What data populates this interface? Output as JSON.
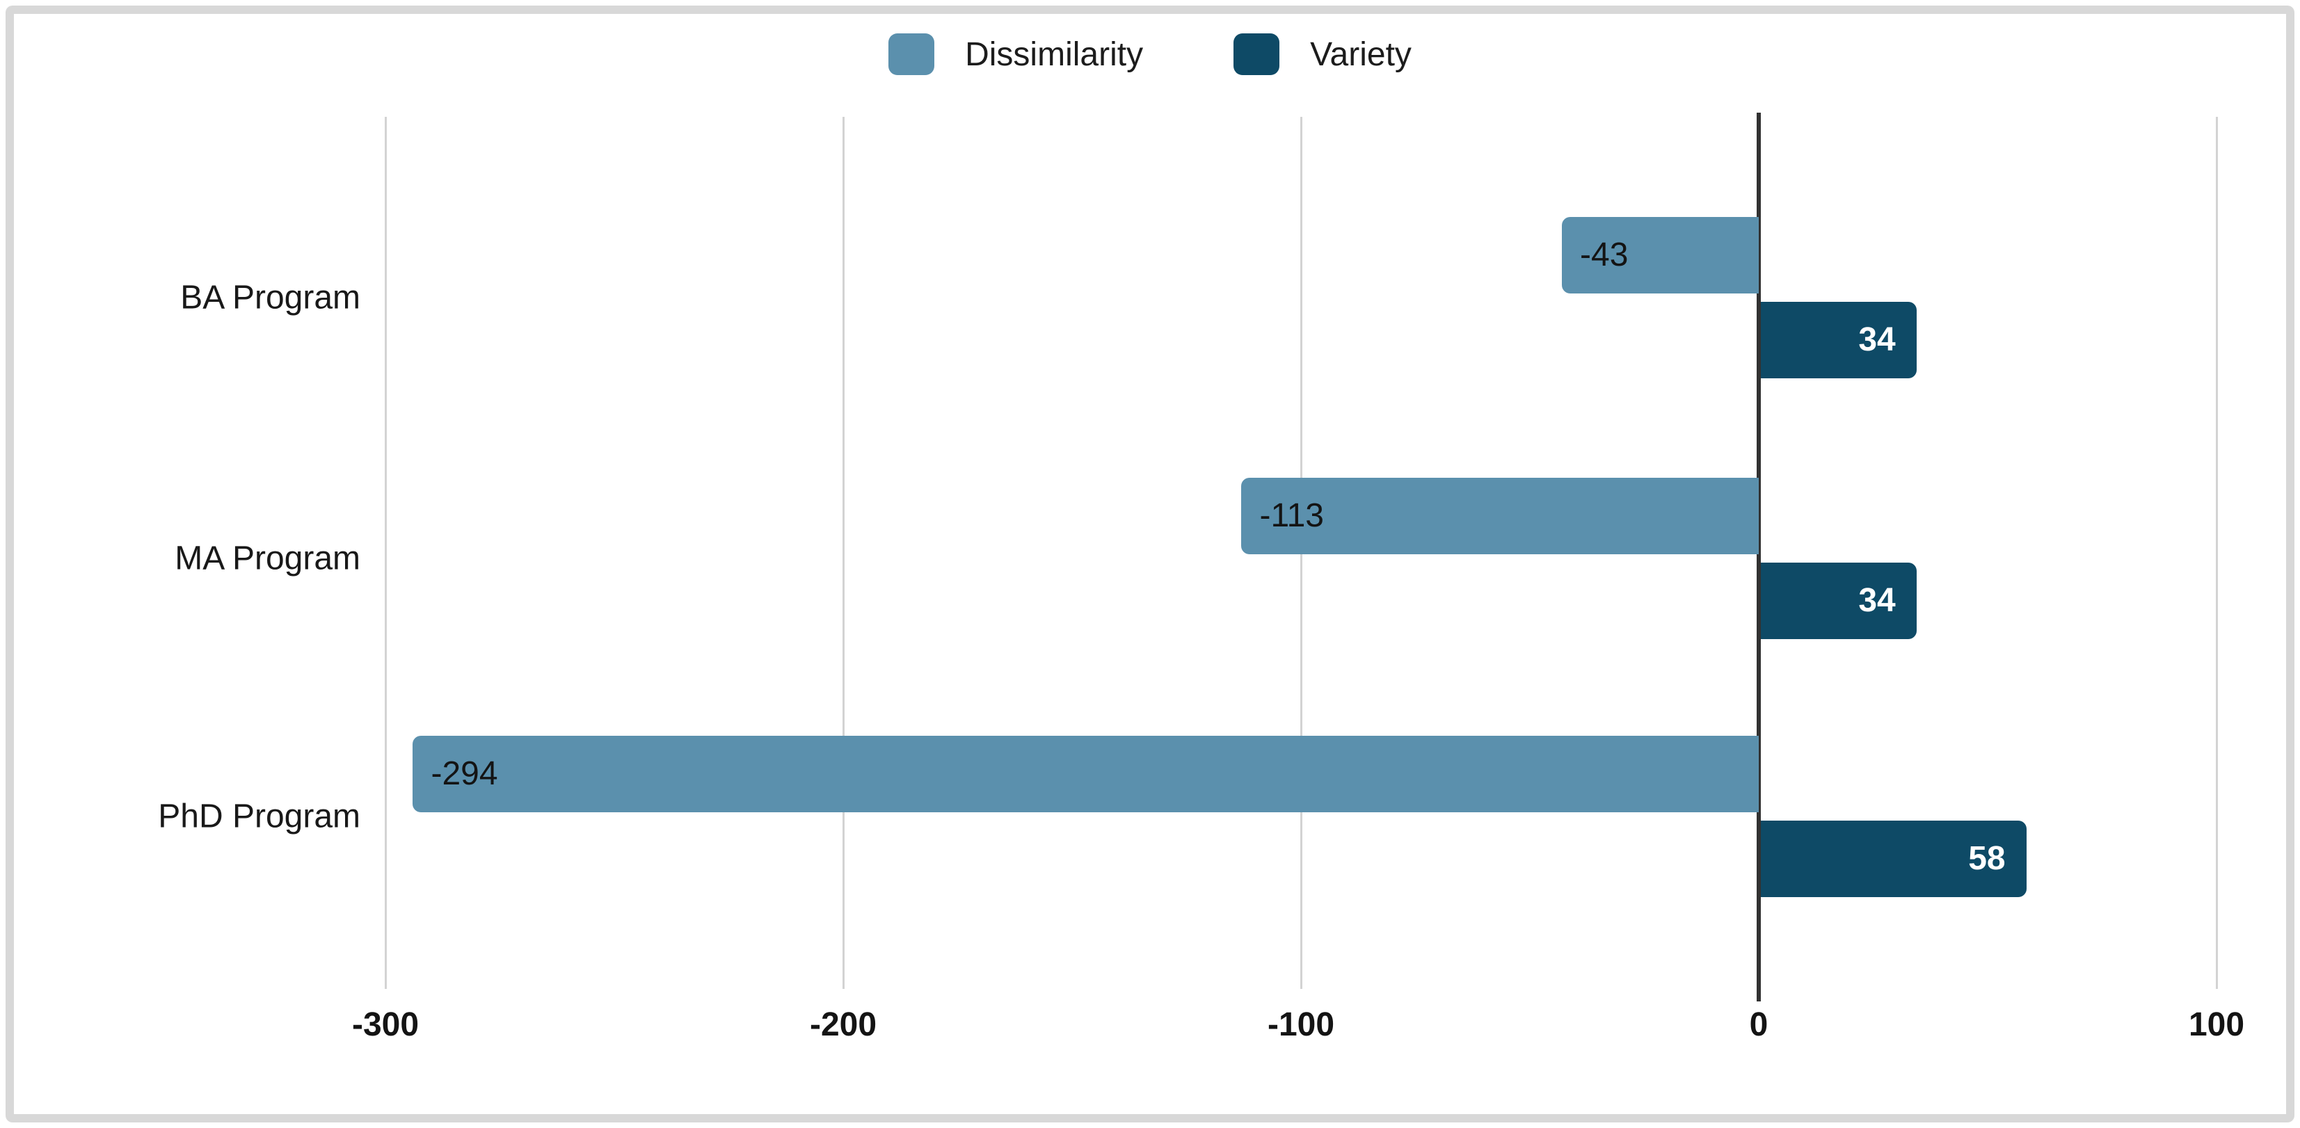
{
  "window": {
    "background": "#ffffff",
    "frame_border_color": "#d8d8d8"
  },
  "chart_data": {
    "type": "bar",
    "orientation": "horizontal",
    "title": "",
    "xlabel": "",
    "ylabel": "",
    "categories": [
      "BA Program",
      "MA Program",
      "PhD Program"
    ],
    "series": [
      {
        "name": "Dissimilarity",
        "color": "#5b90ad",
        "values": [
          -43,
          -113,
          -294
        ]
      },
      {
        "name": "Variety",
        "color": "#0e4a66",
        "values": [
          34,
          34,
          58
        ]
      }
    ],
    "x_ticks": [
      -300,
      -200,
      -100,
      0,
      100
    ],
    "xlim": [
      -330,
      118
    ],
    "grid": true,
    "legend_position": "top-center",
    "data_labels_shown": true,
    "style": {
      "gridline_color": "#d3d3d3",
      "zero_line_color": "#323232",
      "negative_label_color": "#141414",
      "positive_label_color": "#ffffff",
      "category_label_color": "#191919",
      "tick_label_color": "#141414"
    }
  }
}
